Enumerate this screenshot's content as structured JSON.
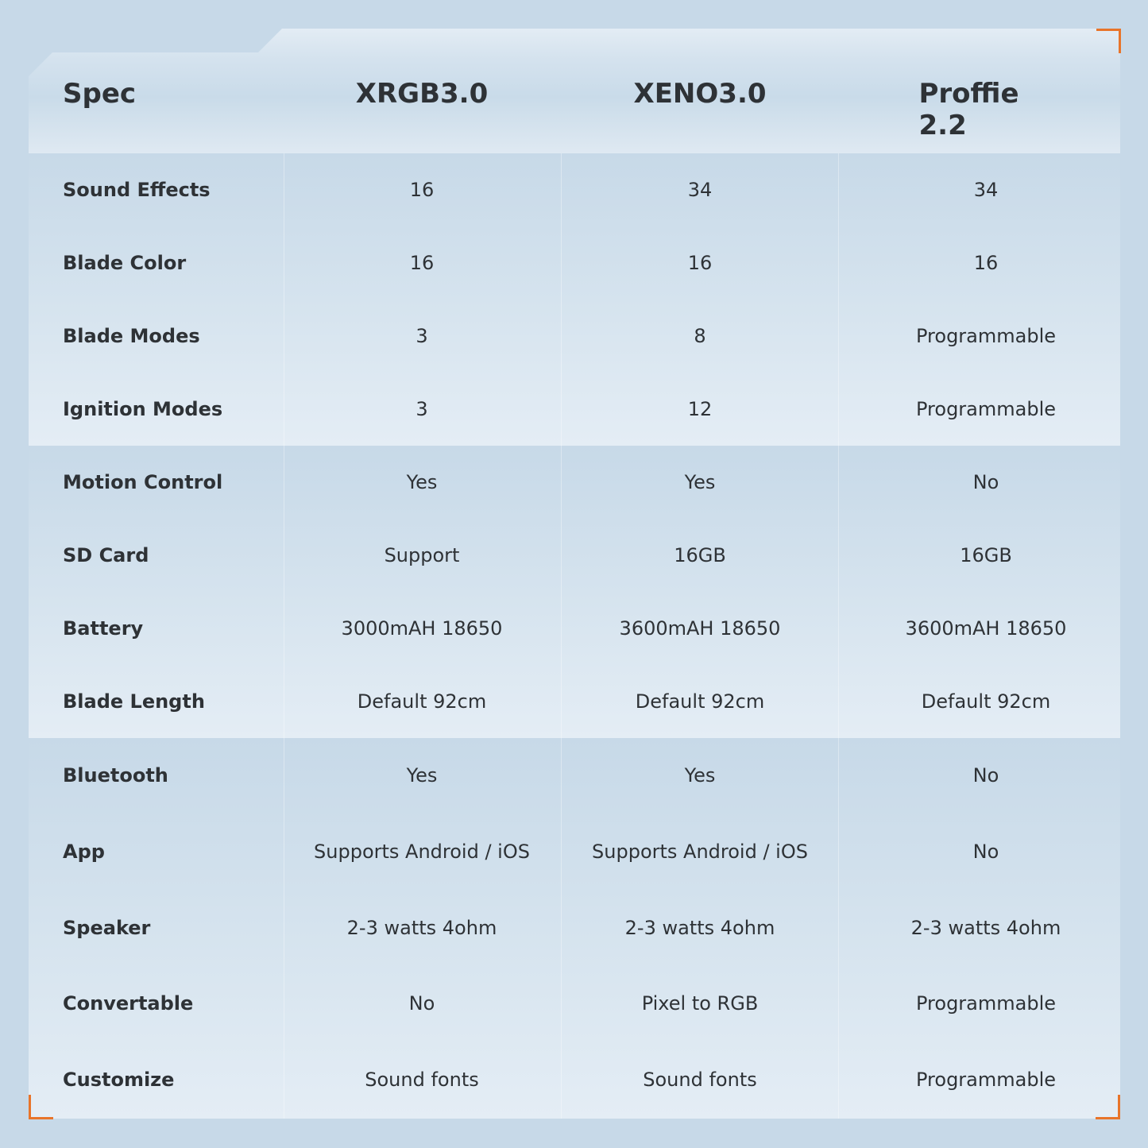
{
  "header": {
    "spec": "Spec",
    "products": [
      "XRGB3.0",
      "XENO3.0",
      "Proffie 2.2"
    ]
  },
  "groups": [
    4,
    4,
    5
  ],
  "rows": [
    {
      "label": "Sound Effects",
      "values": [
        "16",
        "34",
        "34"
      ]
    },
    {
      "label": "Blade Color",
      "values": [
        "16",
        "16",
        "16"
      ]
    },
    {
      "label": "Blade Modes",
      "values": [
        "3",
        "8",
        "Programmable"
      ]
    },
    {
      "label": "Ignition Modes",
      "values": [
        "3",
        "12",
        "Programmable"
      ]
    },
    {
      "label": "Motion Control",
      "values": [
        "Yes",
        "Yes",
        "No"
      ]
    },
    {
      "label": "SD Card",
      "values": [
        "Support",
        "16GB",
        "16GB"
      ]
    },
    {
      "label": "Battery",
      "values": [
        "3000mAH 18650",
        "3600mAH 18650",
        "3600mAH 18650"
      ]
    },
    {
      "label": "Blade Length",
      "values": [
        "Default 92cm",
        "Default 92cm",
        "Default 92cm"
      ]
    },
    {
      "label": "Bluetooth",
      "values": [
        "Yes",
        "Yes",
        "No"
      ]
    },
    {
      "label": "App",
      "values": [
        "Supports Android / iOS",
        "Supports Android / iOS",
        "No"
      ]
    },
    {
      "label": "Speaker",
      "values": [
        "2-3 watts 4ohm",
        "2-3 watts 4ohm",
        "2-3 watts 4ohm"
      ]
    },
    {
      "label": "Convertable",
      "values": [
        "No",
        "Pixel to RGB",
        "Programmable"
      ]
    },
    {
      "label": "Customize",
      "values": [
        "Sound fonts",
        "Sound fonts",
        "Programmable"
      ]
    }
  ],
  "colors": {
    "accent": "#e8742a",
    "background": "#c7d9e8",
    "text": "#2e3236"
  }
}
